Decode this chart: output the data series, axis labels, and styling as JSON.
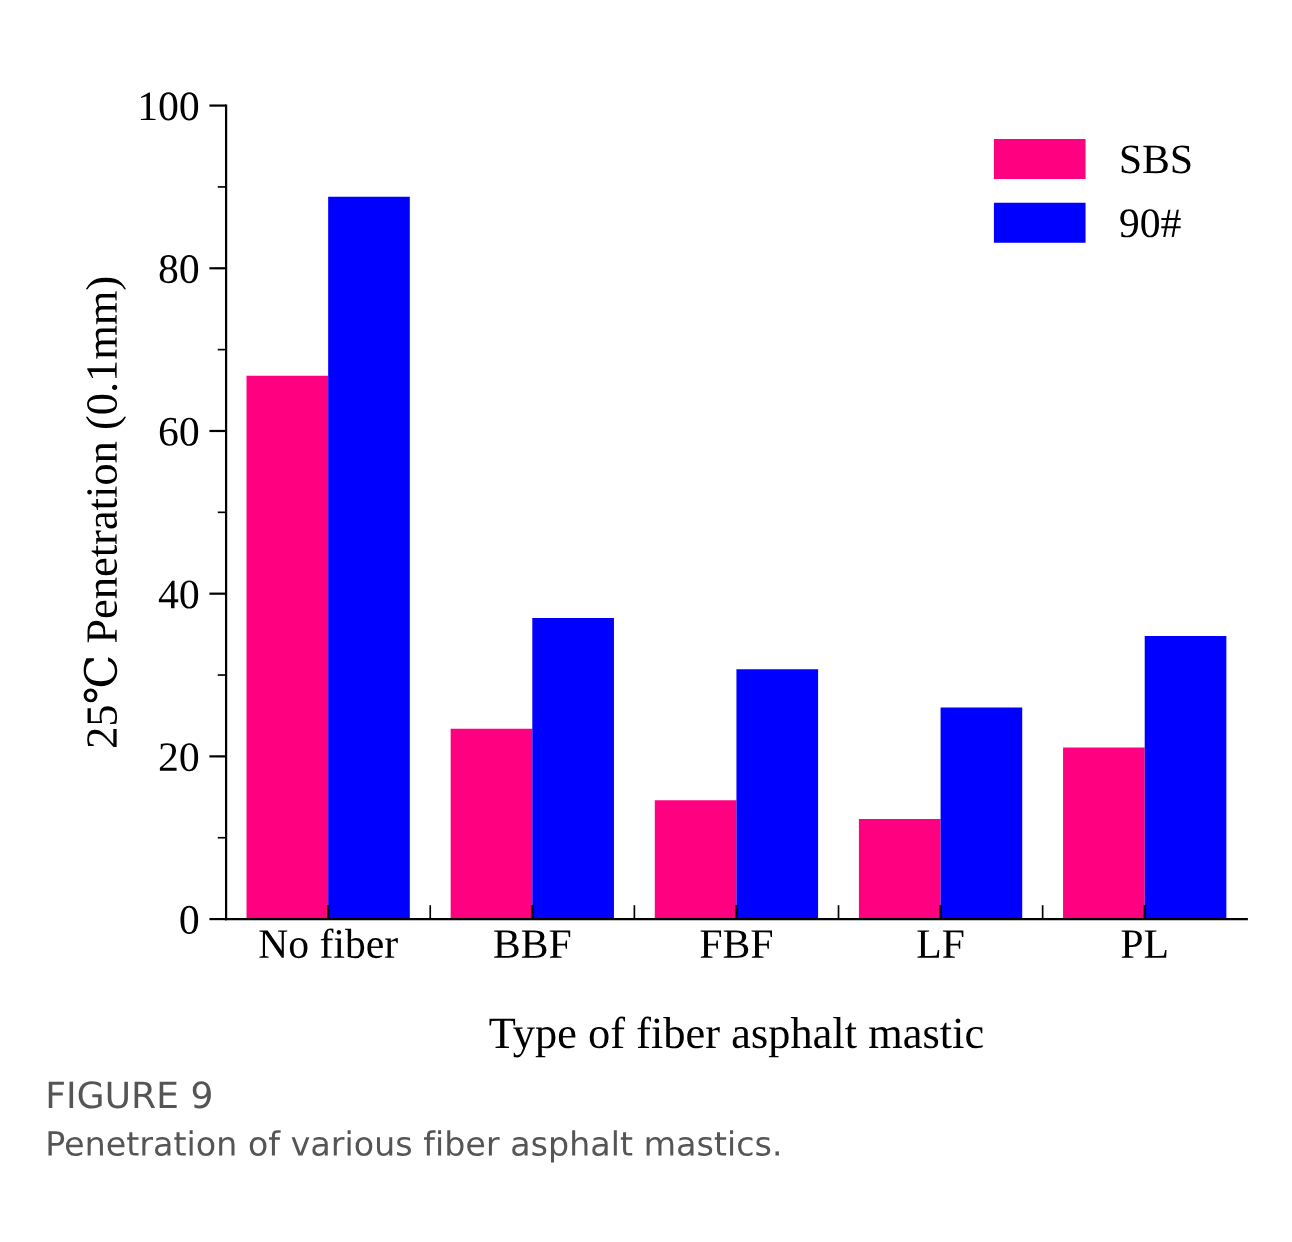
{
  "chart_data": {
    "type": "bar",
    "xlabel": "Type of fiber asphalt mastic",
    "ylabel": "25℃ Penetration (0.1mm)",
    "categories": [
      "No fiber",
      "BBF",
      "FBF",
      "LF",
      "PL"
    ],
    "series": [
      {
        "name": "SBS",
        "color": "#ff0080",
        "values": [
          66.8,
          23.4,
          14.6,
          12.3,
          21.1
        ]
      },
      {
        "name": "90#",
        "color": "#0000ff",
        "values": [
          88.8,
          37.0,
          30.7,
          26.0,
          34.8
        ]
      }
    ],
    "ylim": [
      0,
      100
    ],
    "yticks": [
      0,
      20,
      40,
      60,
      80,
      100
    ],
    "grid": false,
    "legend": "top right",
    "annotations": [
      "FIGURE 9",
      "Penetration of various fiber asphalt mastics."
    ]
  }
}
